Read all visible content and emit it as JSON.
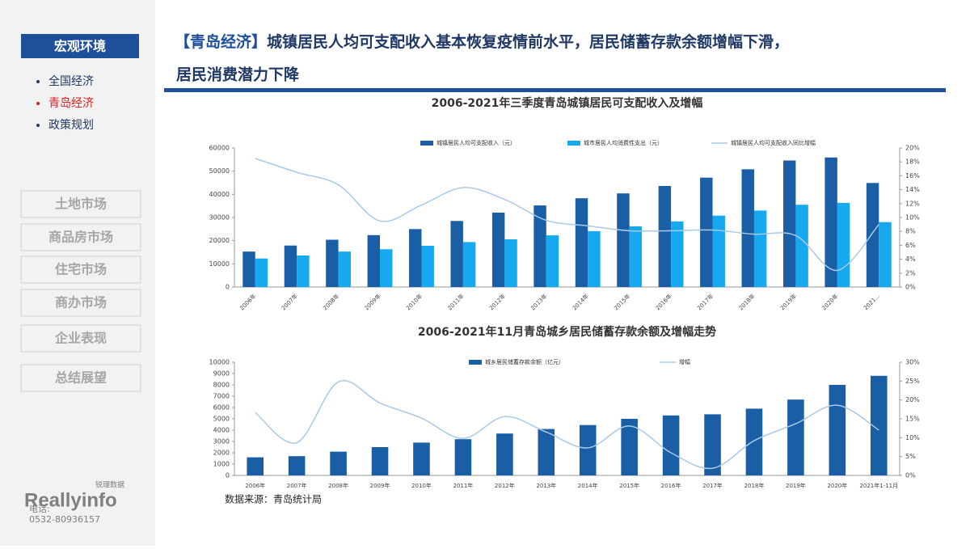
{
  "sidebar": {
    "section": "宏观环境",
    "items": [
      "全国经济",
      "青岛经济",
      "政策规划"
    ],
    "active": 1,
    "buttons": [
      "土地市场",
      "商品房市场",
      "住宅市场",
      "商办市场",
      "企业表现",
      "总结展望"
    ],
    "logo": "Reallyinfo",
    "logo_sub": "锐理数据",
    "phone_label": "电话:",
    "phone": "0532-80936157"
  },
  "header": {
    "tag": "【青岛经济】",
    "title": "城镇居民人均可支配收入基本恢复疫情前水平，居民储蓄存款余额增幅下滑，",
    "title_line2": "居民消费潜力下降"
  },
  "chart_data": [
    {
      "type": "bar",
      "title": "2006-2021年三季度青岛城镇居民可支配收入及增幅",
      "categories": [
        "2006年",
        "2007年",
        "2008年",
        "2009年",
        "2010年",
        "2011年",
        "2012年",
        "2013年",
        "2014年",
        "2015年",
        "2016年",
        "2017年",
        "2018年",
        "2019年",
        "2020年",
        "2021..."
      ],
      "series": [
        {
          "name": "城镇居民人均可支配收入（元）",
          "color": "#1a5ea6",
          "values": [
            15300,
            17900,
            20400,
            22400,
            25000,
            28500,
            32100,
            35200,
            38300,
            40400,
            43600,
            47200,
            50800,
            54600,
            55900,
            44900
          ]
        },
        {
          "name": "城市居民人均消费性支出（元）",
          "color": "#16a9ef",
          "values": [
            12300,
            13600,
            15300,
            16300,
            17800,
            19400,
            20600,
            22300,
            24100,
            26200,
            28300,
            30800,
            33000,
            35500,
            36300,
            28000
          ]
        },
        {
          "name": "城镇居民人均可支配收入同比增幅",
          "color": "#a9c9e8",
          "type": "line",
          "axis": "y2",
          "values": [
            18.5,
            16.5,
            14.7,
            9.5,
            11.8,
            14.3,
            12.6,
            9.6,
            8.8,
            8.1,
            8.1,
            8.2,
            7.6,
            7.4,
            2.4,
            9.0
          ]
        }
      ],
      "ylim": [
        0,
        60000
      ],
      "yticks": [
        0,
        10000,
        20000,
        30000,
        40000,
        50000,
        60000
      ],
      "y2lim": [
        0,
        20
      ],
      "y2ticks": [
        {
          "value": 0,
          "label": "0%"
        },
        {
          "value": 2,
          "label": "2%"
        },
        {
          "value": 4,
          "label": "4%"
        },
        {
          "value": 6,
          "label": "6%"
        },
        {
          "value": 8,
          "label": "8%"
        },
        {
          "value": 10,
          "label": "10%"
        },
        {
          "value": 12,
          "label": "12%"
        },
        {
          "value": 14,
          "label": "14%"
        },
        {
          "value": 16,
          "label": "16%"
        },
        {
          "value": 18,
          "label": "18%"
        },
        {
          "value": 20,
          "label": "20%"
        }
      ]
    },
    {
      "type": "bar",
      "title": "2006-2021年11月青岛城乡居民储蓄存款余额及增幅走势",
      "categories": [
        "2006年",
        "2007年",
        "2008年",
        "2009年",
        "2010年",
        "2011年",
        "2012年",
        "2013年",
        "2014年",
        "2015年",
        "2016年",
        "2017年",
        "2018年",
        "2019年",
        "2020年",
        "2021年1-11月"
      ],
      "series": [
        {
          "name": "城乡居民储蓄存款余额（亿元）",
          "color": "#1a5ea6",
          "values": [
            1600,
            1700,
            2100,
            2500,
            2900,
            3200,
            3700,
            4100,
            4450,
            5000,
            5300,
            5400,
            5900,
            6700,
            8000,
            8800
          ]
        },
        {
          "name": "增幅",
          "color": "#a9c9e8",
          "type": "line",
          "axis": "y2",
          "values": [
            16.7,
            8.7,
            24.8,
            19.2,
            15.2,
            9.8,
            15.6,
            11.5,
            7.3,
            13.1,
            6.0,
            1.9,
            9.2,
            13.7,
            18.6,
            12.0
          ]
        }
      ],
      "ylim": [
        0,
        10000
      ],
      "yticks": [
        0,
        1000,
        2000,
        3000,
        4000,
        5000,
        6000,
        7000,
        8000,
        9000,
        10000
      ],
      "y2lim": [
        0,
        30
      ],
      "y2ticks": [
        {
          "value": 0,
          "label": "0%"
        },
        {
          "value": 5,
          "label": "5%"
        },
        {
          "value": 10,
          "label": "10%"
        },
        {
          "value": 15,
          "label": "15%"
        },
        {
          "value": 20,
          "label": "20%"
        },
        {
          "value": 25,
          "label": "25%"
        },
        {
          "value": 30,
          "label": "30%"
        }
      ]
    }
  ],
  "source": "数据来源：青岛统计局"
}
